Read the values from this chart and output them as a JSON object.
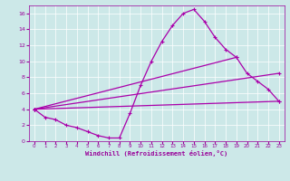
{
  "bg_color": "#cce8e8",
  "grid_color": "#ffffff",
  "line_color": "#aa00aa",
  "marker_color": "#aa00aa",
  "xlabel": "Windchill (Refroidissement éolien,°C)",
  "xlabel_color": "#990099",
  "tick_color": "#990099",
  "xmin": 0,
  "xmax": 23,
  "ymin": 0,
  "ymax": 17,
  "yticks": [
    0,
    2,
    4,
    6,
    8,
    10,
    12,
    14,
    16
  ],
  "xticks": [
    0,
    1,
    2,
    3,
    4,
    5,
    6,
    7,
    8,
    9,
    10,
    11,
    12,
    13,
    14,
    15,
    16,
    17,
    18,
    19,
    20,
    21,
    22,
    23
  ],
  "curve1_x": [
    0,
    1,
    2,
    3,
    4,
    5,
    6,
    7,
    8,
    9,
    10,
    11,
    12,
    13,
    14,
    15,
    16,
    17,
    18,
    19
  ],
  "curve1_y": [
    4.0,
    3.0,
    2.7,
    2.0,
    1.7,
    1.2,
    0.7,
    0.4,
    0.4,
    3.5,
    7.0,
    10.0,
    12.5,
    14.5,
    16.0,
    16.5,
    15.0,
    13.0,
    11.5,
    10.5
  ],
  "curve2_x": [
    0,
    19,
    20,
    21,
    22,
    23
  ],
  "curve2_y": [
    4.0,
    10.5,
    8.5,
    7.5,
    6.5,
    5.0
  ],
  "curve3_x": [
    0,
    23
  ],
  "curve3_y": [
    4.0,
    8.5
  ],
  "curve4_x": [
    0,
    23
  ],
  "curve4_y": [
    4.0,
    5.0
  ]
}
